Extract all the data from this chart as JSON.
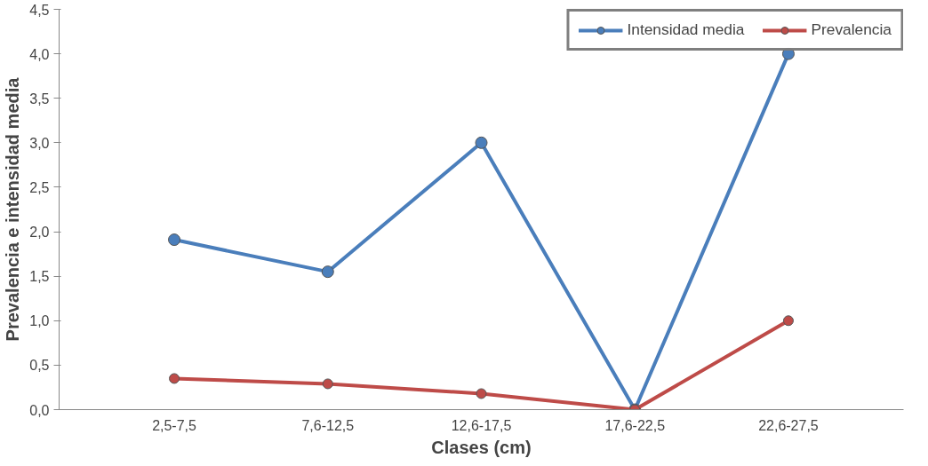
{
  "chart_data": {
    "type": "line",
    "xlabel": "Clases (cm)",
    "ylabel": "Prevalencia e intensidad media",
    "categories": [
      "2,5-7,5",
      "7,6-12,5",
      "12,6-17,5",
      "17,6-22,5",
      "22,6-27,5"
    ],
    "series": [
      {
        "name": "Intensidad media",
        "color": "#4a7ebb",
        "values": [
          1.91,
          1.55,
          3.0,
          0,
          4.0
        ]
      },
      {
        "name": "Prevalencia",
        "color": "#be4b48",
        "values": [
          0.35,
          0.29,
          0.18,
          0,
          1.0
        ]
      }
    ],
    "ylim": [
      0,
      4.5
    ],
    "yticks": [
      {
        "value": 0,
        "label": "0,0"
      },
      {
        "value": 0.5,
        "label": "0,5"
      },
      {
        "value": 1,
        "label": "1,0"
      },
      {
        "value": 1.5,
        "label": "1,5"
      },
      {
        "value": 2,
        "label": "2,0"
      },
      {
        "value": 2.5,
        "label": "2,5"
      },
      {
        "value": 3,
        "label": "3,0"
      },
      {
        "value": 3.5,
        "label": "3,5"
      },
      {
        "value": 4,
        "label": "4,0"
      },
      {
        "value": 4.5,
        "label": "4,5"
      }
    ],
    "grid": false,
    "legend": "top right",
    "marker": "circle",
    "line_style": "solid"
  }
}
